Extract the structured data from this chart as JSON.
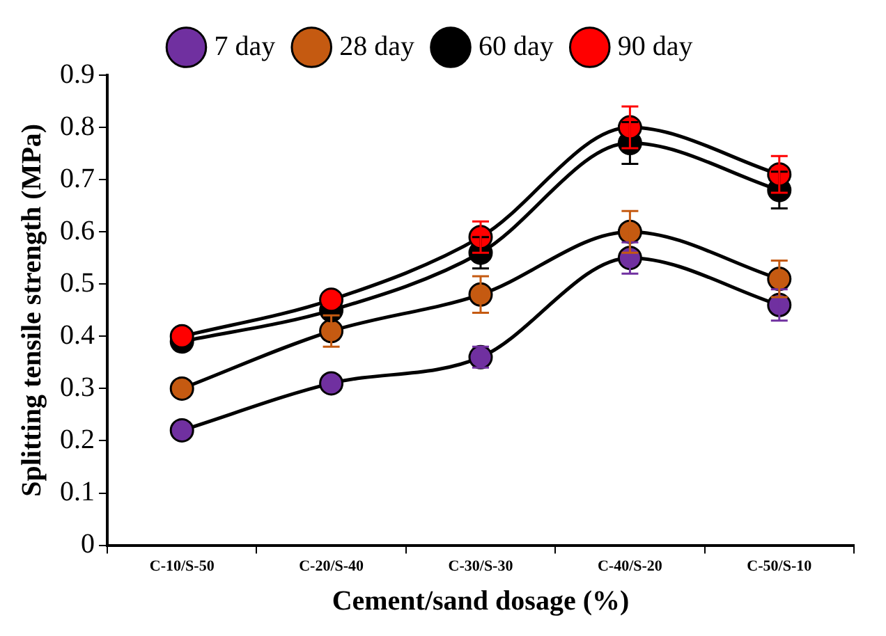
{
  "chart_data": {
    "type": "line",
    "xlabel": "Cement/sand dosage (%)",
    "ylabel": "Splitting tensile strength (MPa)",
    "categories": [
      "C-10/S-50",
      "C-20/S-40",
      "C-30/S-30",
      "C-40/S-20",
      "C-50/S-10"
    ],
    "series": [
      {
        "name": "7 day",
        "color": "#7030a0",
        "values": [
          0.22,
          0.31,
          0.36,
          0.55,
          0.46
        ],
        "errors": [
          null,
          null,
          0.02,
          0.03,
          0.03
        ]
      },
      {
        "name": "28 day",
        "color": "#c55a11",
        "values": [
          0.3,
          0.41,
          0.48,
          0.6,
          0.51
        ],
        "errors": [
          null,
          0.03,
          0.035,
          0.04,
          0.035
        ]
      },
      {
        "name": "60 day",
        "color": "#000000",
        "values": [
          0.39,
          0.45,
          0.56,
          0.77,
          0.68
        ],
        "errors": [
          null,
          null,
          0.03,
          0.04,
          0.035
        ]
      },
      {
        "name": "90 day",
        "color": "#ff0000",
        "values": [
          0.4,
          0.47,
          0.59,
          0.8,
          0.71
        ],
        "errors": [
          null,
          0.01,
          0.03,
          0.04,
          0.035
        ]
      }
    ],
    "ylim": [
      0,
      0.9
    ],
    "yticks": [
      0,
      0.1,
      0.2,
      0.3,
      0.4,
      0.5,
      0.6,
      0.7,
      0.8,
      0.9
    ],
    "grid": false,
    "legend": "top",
    "marker": "circle",
    "line_style": "solid"
  }
}
